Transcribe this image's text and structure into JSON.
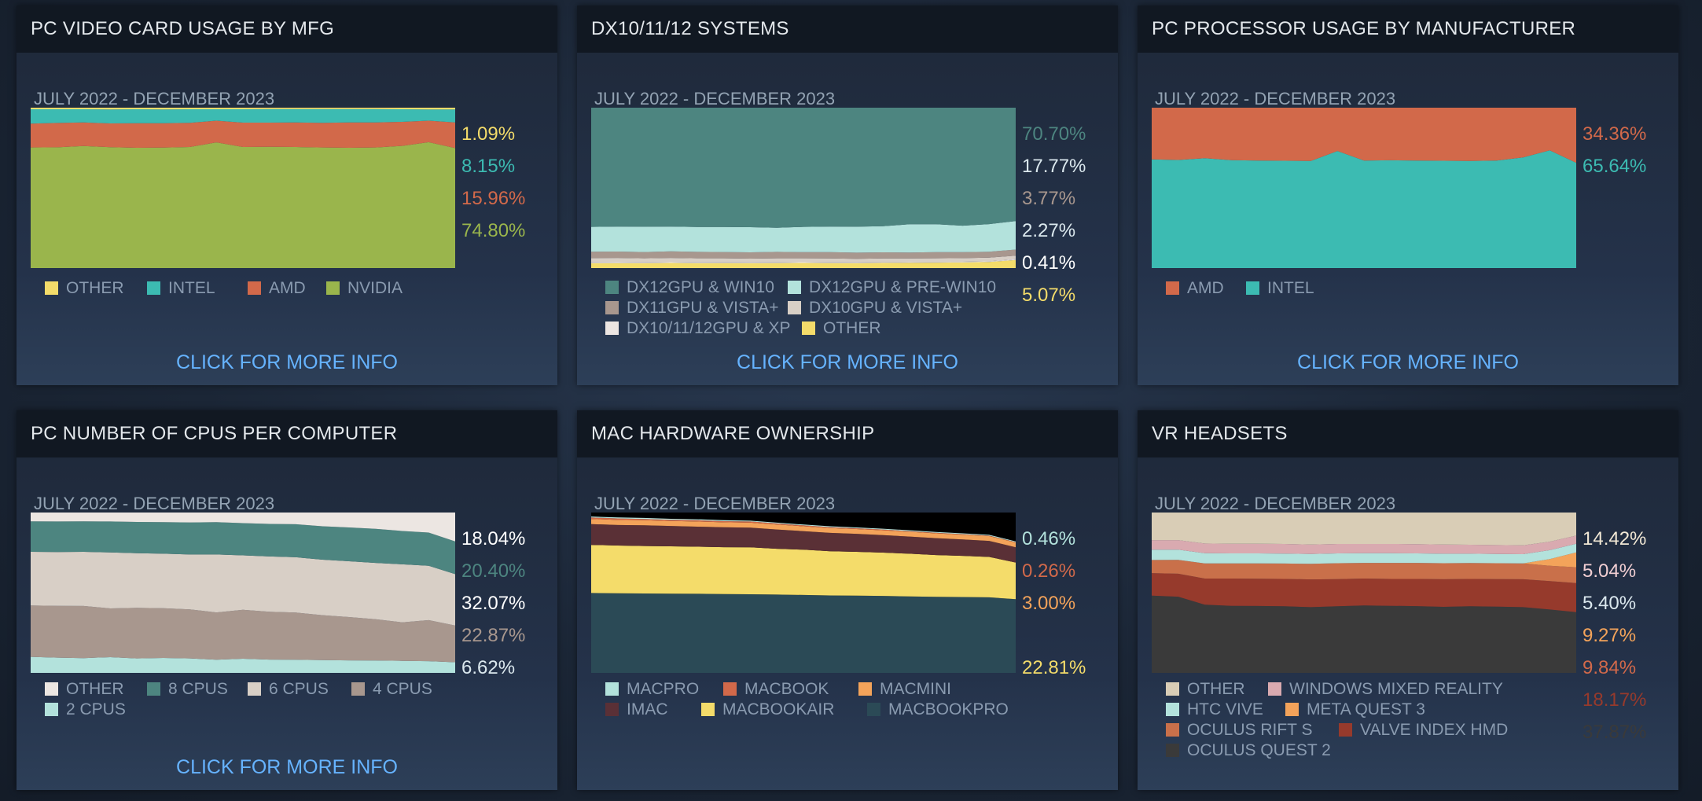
{
  "panels": [
    {
      "id": "videocard",
      "title": "PC VIDEO CARD USAGE BY MFG",
      "date_range": "JULY 2022 - DECEMBER 2023",
      "link": "CLICK FOR MORE INFO",
      "legend_rows": [
        [
          {
            "label": "OTHER",
            "color": "#f4dc6a"
          },
          {
            "label": "INTEL",
            "color": "#3cbbb2"
          },
          {
            "label": "AMD",
            "color": "#d2694a"
          },
          {
            "label": "NVIDIA",
            "color": "#9ab54c"
          }
        ]
      ],
      "percents": [
        {
          "text": "1.09%",
          "color": "#f4dc6a"
        },
        {
          "text": "8.15%",
          "color": "#3cbbb2"
        },
        {
          "text": "15.96%",
          "color": "#d2694a"
        },
        {
          "text": "74.80%",
          "color": "#9ab54c"
        }
      ]
    },
    {
      "id": "dx",
      "title": "DX10/11/12 SYSTEMS",
      "date_range": "JULY 2022 - DECEMBER 2023",
      "link": "CLICK FOR MORE INFO",
      "legend_rows": [
        [
          {
            "label": "DX12GPU & WIN10",
            "color": "#4d8580"
          },
          {
            "label": "DX12GPU & PRE-WIN10",
            "color": "#b3e2dc"
          }
        ],
        [
          {
            "label": "DX11GPU & VISTA+",
            "color": "#a8978e"
          },
          {
            "label": "DX10GPU & VISTA+",
            "color": "#d8cfc6"
          }
        ],
        [
          {
            "label": "DX10/11/12GPU & XP",
            "color": "#ece6e2"
          },
          {
            "label": "OTHER",
            "color": "#f4dc6a"
          }
        ]
      ],
      "percents": [
        {
          "text": "70.70%",
          "color": "#4d8580"
        },
        {
          "text": "17.77%",
          "color": "#dbe8ee"
        },
        {
          "text": "3.77%",
          "color": "#a8978e"
        },
        {
          "text": "2.27%",
          "color": "#dbe8ee"
        },
        {
          "text": "0.41%",
          "color": "#ffffff"
        },
        {
          "text": "5.07%",
          "color": "#f4dc6a"
        }
      ]
    },
    {
      "id": "cpu",
      "title": "PC PROCESSOR USAGE BY MANUFACTURER",
      "date_range": "JULY 2022 - DECEMBER 2023",
      "link": "CLICK FOR MORE INFO",
      "legend_rows": [
        [
          {
            "label": "AMD",
            "color": "#d2694a"
          },
          {
            "label": "INTEL",
            "color": "#3cbbb2"
          }
        ]
      ],
      "percents": [
        {
          "text": "34.36%",
          "color": "#d2694a"
        },
        {
          "text": "65.64%",
          "color": "#3cbbb2"
        }
      ]
    },
    {
      "id": "numcpus",
      "title": "PC NUMBER OF CPUS PER COMPUTER",
      "date_range": "JULY 2022 - DECEMBER 2023",
      "link": "CLICK FOR MORE INFO",
      "legend_rows": [
        [
          {
            "label": "OTHER",
            "color": "#ece6e2"
          },
          {
            "label": "8 CPUS",
            "color": "#4d8580"
          },
          {
            "label": "6 CPUS",
            "color": "#d8cfc6"
          },
          {
            "label": "4 CPUS",
            "color": "#a8978e"
          }
        ],
        [
          {
            "label": "2 CPUS",
            "color": "#b3e2dc"
          }
        ]
      ],
      "percents": [
        {
          "text": "18.04%",
          "color": "#ffffff"
        },
        {
          "text": "20.40%",
          "color": "#4d8580"
        },
        {
          "text": "32.07%",
          "color": "#ffffff"
        },
        {
          "text": "22.87%",
          "color": "#a8978e"
        },
        {
          "text": "6.62%",
          "color": "#dbe8ee"
        }
      ]
    },
    {
      "id": "mac",
      "title": "MAC HARDWARE OWNERSHIP",
      "date_range": "JULY 2022 - DECEMBER 2023",
      "link": "",
      "legend_rows": [
        [
          {
            "label": "MACPRO",
            "color": "#b3e2dc"
          },
          {
            "label": "MACBOOK",
            "color": "#d2694a"
          },
          {
            "label": "MACMINI",
            "color": "#f3a35a"
          }
        ],
        [
          {
            "label": "IMAC",
            "color": "#5a3036"
          },
          {
            "label": "MACBOOKAIR",
            "color": "#f4dc6a"
          },
          {
            "label": "MACBOOKPRO",
            "color": "#2b4a56"
          }
        ]
      ],
      "percents": [
        {
          "text": "0.46%",
          "color": "#b3e2dc"
        },
        {
          "text": "0.26%",
          "color": "#d2694a"
        },
        {
          "text": "3.00%",
          "color": "#f3a35a"
        },
        {
          "text": "",
          "color": "#5a3036"
        },
        {
          "text": "22.81%",
          "color": "#f4dc6a"
        },
        {
          "text": "",
          "color": "#2b4a56"
        }
      ]
    },
    {
      "id": "vr",
      "title": "VR HEADSETS",
      "date_range": "JULY 2022 - DECEMBER 2023",
      "link": "",
      "legend_rows": [
        [
          {
            "label": "OTHER",
            "color": "#d9cdb6"
          },
          {
            "label": "WINDOWS MIXED REALITY",
            "color": "#d9aab0"
          }
        ],
        [
          {
            "label": "HTC VIVE",
            "color": "#b3e2dc"
          },
          {
            "label": "META QUEST 3",
            "color": "#f3a35a"
          }
        ],
        [
          {
            "label": "OCULUS RIFT S",
            "color": "#c9704a"
          },
          {
            "label": "VALVE INDEX HMD",
            "color": "#963a2c"
          }
        ],
        [
          {
            "label": "OCULUS QUEST 2",
            "color": "#3a3a3a"
          }
        ]
      ],
      "percents": [
        {
          "text": "14.42%",
          "color": "#f2e8d5"
        },
        {
          "text": "5.04%",
          "color": "#f2cfd3"
        },
        {
          "text": "5.40%",
          "color": "#dbe8ee"
        },
        {
          "text": "9.27%",
          "color": "#f3a35a"
        },
        {
          "text": "9.84%",
          "color": "#d2694a"
        },
        {
          "text": "18.17%",
          "color": "#963a2c"
        },
        {
          "text": "37.87%",
          "color": "#3a3a3a"
        }
      ]
    }
  ],
  "chart_data": [
    {
      "type": "area",
      "title": "PC VIDEO CARD USAGE BY MFG",
      "x_range": "JULY 2022 - DECEMBER 2023",
      "series": [
        {
          "name": "NVIDIA",
          "values": [
            75.2,
            75.3,
            76.1,
            75.4,
            75.0,
            75.1,
            75.5,
            78.4,
            75.5,
            75.6,
            75.5,
            75.2,
            75.0,
            75.2,
            76.2,
            78.5,
            74.8
          ]
        },
        {
          "name": "AMD",
          "values": [
            14.9,
            15.2,
            14.7,
            14.8,
            15.3,
            15.2,
            15.1,
            13.5,
            15.2,
            15.1,
            15.3,
            15.4,
            15.8,
            15.6,
            15.0,
            13.4,
            15.96
          ]
        },
        {
          "name": "INTEL",
          "values": [
            8.9,
            8.5,
            8.2,
            8.7,
            8.7,
            8.6,
            8.4,
            7.1,
            8.3,
            8.4,
            8.3,
            8.5,
            8.3,
            8.3,
            7.8,
            7.0,
            8.15
          ]
        },
        {
          "name": "OTHER",
          "values": [
            1.0,
            1.0,
            1.0,
            1.1,
            1.0,
            1.1,
            1.0,
            1.0,
            1.0,
            0.9,
            0.9,
            0.9,
            0.9,
            0.9,
            1.0,
            1.1,
            1.09
          ]
        }
      ]
    },
    {
      "type": "area",
      "title": "DX10/11/12 SYSTEMS",
      "x_range": "JULY 2022 - DECEMBER 2023",
      "series": [
        {
          "name": "OTHER",
          "values": [
            3.0,
            3.1,
            3.0,
            3.2,
            3.0,
            3.1,
            3.0,
            3.1,
            3.2,
            3.1,
            3.0,
            3.2,
            3.3,
            3.4,
            3.5,
            3.8,
            5.07
          ]
        },
        {
          "name": "DX10/11/12GPU & XP",
          "values": [
            0.6,
            0.6,
            0.6,
            0.5,
            0.6,
            0.5,
            0.5,
            0.5,
            0.5,
            0.5,
            0.5,
            0.4,
            0.4,
            0.4,
            0.4,
            0.4,
            0.41
          ]
        },
        {
          "name": "DX10GPU & VISTA+",
          "values": [
            2.6,
            2.6,
            2.5,
            2.6,
            2.5,
            2.5,
            2.4,
            2.5,
            2.4,
            2.4,
            2.3,
            2.4,
            2.3,
            2.3,
            2.3,
            2.3,
            2.27
          ]
        },
        {
          "name": "DX11GPU & VISTA+",
          "values": [
            4.0,
            4.0,
            3.9,
            4.1,
            4.0,
            3.9,
            3.9,
            4.0,
            3.8,
            3.9,
            3.8,
            3.8,
            3.7,
            3.8,
            3.7,
            3.7,
            3.77
          ]
        },
        {
          "name": "DX12GPU & PRE-WIN10",
          "values": [
            15.5,
            15.6,
            15.8,
            15.5,
            15.5,
            15.6,
            15.7,
            15.0,
            15.8,
            16.0,
            16.2,
            16.3,
            17.6,
            17.4,
            16.5,
            17.2,
            17.77
          ]
        },
        {
          "name": "DX12GPU & WIN10",
          "values": [
            74.3,
            74.1,
            74.2,
            74.1,
            74.4,
            74.4,
            74.5,
            74.9,
            74.3,
            74.1,
            74.2,
            73.9,
            72.7,
            72.7,
            73.6,
            72.6,
            70.7
          ]
        }
      ]
    },
    {
      "type": "area",
      "title": "PC PROCESSOR USAGE BY MANUFACTURER",
      "x_range": "JULY 2022 - DECEMBER 2023",
      "series": [
        {
          "name": "INTEL",
          "values": [
            67.8,
            67.4,
            68.5,
            67.3,
            67.0,
            66.9,
            66.8,
            73.0,
            67.0,
            67.2,
            67.0,
            66.9,
            66.8,
            67.0,
            69.0,
            73.4,
            65.64
          ]
        },
        {
          "name": "AMD",
          "values": [
            32.2,
            32.6,
            31.5,
            32.7,
            33.0,
            33.1,
            33.2,
            27.0,
            33.0,
            32.8,
            33.0,
            33.1,
            33.2,
            33.0,
            31.0,
            26.6,
            34.36
          ]
        }
      ]
    },
    {
      "type": "area",
      "title": "PC NUMBER OF CPUS PER COMPUTER",
      "x_range": "JULY 2022 - DECEMBER 2023",
      "series": [
        {
          "name": "2 CPUS",
          "values": [
            10.0,
            9.5,
            9.2,
            9.8,
            9.0,
            9.3,
            9.0,
            8.2,
            8.8,
            8.3,
            8.2,
            8.0,
            7.8,
            7.7,
            7.5,
            7.3,
            6.62
          ]
        },
        {
          "name": "4 CPUS",
          "values": [
            32.0,
            32.3,
            32.5,
            30.4,
            31.6,
            31.0,
            30.6,
            29.5,
            30.5,
            29.8,
            29.4,
            28.0,
            27.0,
            25.8,
            24.0,
            25.6,
            22.87
          ]
        },
        {
          "name": "6 CPUS",
          "values": [
            33.5,
            33.6,
            33.8,
            34.9,
            34.0,
            34.0,
            34.2,
            36.1,
            34.0,
            34.5,
            34.5,
            34.6,
            34.8,
            35.1,
            36.2,
            33.9,
            32.07
          ]
        },
        {
          "name": "8 CPUS",
          "values": [
            19.0,
            19.0,
            19.0,
            19.3,
            19.5,
            19.7,
            20.0,
            20.2,
            20.1,
            20.3,
            20.6,
            20.8,
            21.1,
            21.2,
            20.8,
            20.7,
            20.4
          ]
        },
        {
          "name": "OTHER",
          "values": [
            5.5,
            5.6,
            5.5,
            5.6,
            5.9,
            6.0,
            6.2,
            6.0,
            6.6,
            7.1,
            7.3,
            8.6,
            9.3,
            10.2,
            11.5,
            12.5,
            18.04
          ]
        }
      ]
    },
    {
      "type": "area",
      "title": "MAC HARDWARE OWNERSHIP",
      "x_range": "JULY 2022 - DECEMBER 2023",
      "series": [
        {
          "name": "MACBOOKPRO",
          "values": [
            49.8,
            49.6,
            49.5,
            49.4,
            49.3,
            49.1,
            49.0,
            48.8,
            48.6,
            48.3,
            48.2,
            48.0,
            47.7,
            47.4,
            47.3,
            47.1,
            46.0
          ]
        },
        {
          "name": "MACBOOKAIR",
          "values": [
            30.0,
            29.8,
            29.6,
            29.5,
            29.4,
            29.3,
            29.3,
            28.6,
            28.2,
            27.6,
            27.3,
            27.0,
            26.6,
            26.1,
            25.7,
            25.2,
            22.81
          ]
        },
        {
          "name": "IMAC",
          "values": [
            13.0,
            12.8,
            12.9,
            12.7,
            12.5,
            12.4,
            12.3,
            12.0,
            11.6,
            11.4,
            11.2,
            10.9,
            10.7,
            10.5,
            10.2,
            10.0,
            9.5
          ]
        },
        {
          "name": "MACMINI",
          "values": [
            3.2,
            3.2,
            3.2,
            3.1,
            3.2,
            3.1,
            3.1,
            3.1,
            3.0,
            3.0,
            3.0,
            3.0,
            3.0,
            3.0,
            3.0,
            3.0,
            3.0
          ]
        },
        {
          "name": "MACBOOK",
          "values": [
            0.9,
            0.9,
            0.8,
            0.8,
            0.8,
            0.7,
            0.7,
            0.7,
            0.6,
            0.6,
            0.5,
            0.5,
            0.4,
            0.4,
            0.3,
            0.3,
            0.26
          ]
        },
        {
          "name": "MACPRO",
          "values": [
            0.6,
            0.6,
            0.6,
            0.6,
            0.6,
            0.6,
            0.5,
            0.5,
            0.5,
            0.5,
            0.5,
            0.5,
            0.5,
            0.5,
            0.5,
            0.5,
            0.46
          ]
        }
      ]
    },
    {
      "type": "area",
      "title": "VR HEADSETS",
      "x_range": "JULY 2022 - DECEMBER 2023",
      "series": [
        {
          "name": "OCULUS QUEST 2",
          "values": [
            48.2,
            47.5,
            42.5,
            41.8,
            41.7,
            41.5,
            41.0,
            41.5,
            42.0,
            41.8,
            41.6,
            41.2,
            41.5,
            41.3,
            41.0,
            39.5,
            37.87
          ]
        },
        {
          "name": "VALVE INDEX HMD",
          "values": [
            14.0,
            14.3,
            16.3,
            17.0,
            17.0,
            17.1,
            17.3,
            17.0,
            16.8,
            16.8,
            17.0,
            17.2,
            17.1,
            17.2,
            17.4,
            17.7,
            18.17
          ]
        },
        {
          "name": "OCULUS RIFT S",
          "values": [
            8.2,
            8.7,
            9.5,
            9.5,
            9.6,
            9.6,
            9.7,
            9.9,
            9.8,
            10.0,
            10.0,
            10.0,
            9.9,
            9.9,
            9.9,
            9.6,
            9.84
          ]
        },
        {
          "name": "META QUEST 3",
          "values": [
            0,
            0,
            0,
            0,
            0,
            0,
            0,
            0,
            0,
            0,
            0,
            0,
            0,
            0,
            0,
            4.2,
            9.27
          ]
        },
        {
          "name": "HTC VIVE",
          "values": [
            6.4,
            6.3,
            6.3,
            6.2,
            6.2,
            6.2,
            6.1,
            6.1,
            6.0,
            6.0,
            5.9,
            5.9,
            5.8,
            5.7,
            5.7,
            5.5,
            5.4
          ]
        },
        {
          "name": "WINDOWS MIXED REALITY",
          "values": [
            6.0,
            6.0,
            6.1,
            6.0,
            6.0,
            6.0,
            5.9,
            5.9,
            5.8,
            5.8,
            5.8,
            5.7,
            5.6,
            5.6,
            5.5,
            5.3,
            5.04
          ]
        },
        {
          "name": "OTHER",
          "values": [
            17.2,
            17.2,
            25.3,
            25.5,
            25.5,
            25.6,
            26.0,
            25.6,
            25.6,
            25.6,
            25.7,
            26.0,
            26.1,
            26.3,
            26.5,
            18.2,
            14.42
          ]
        }
      ]
    }
  ]
}
